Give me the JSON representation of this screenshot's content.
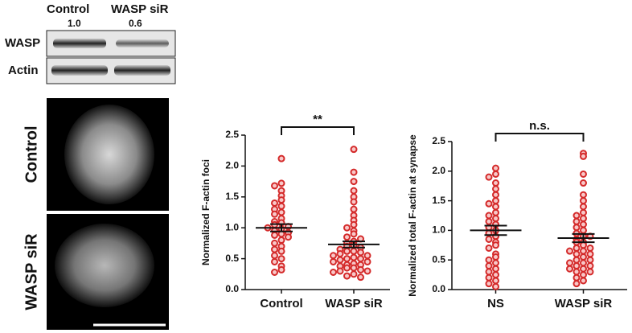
{
  "blot": {
    "lanes": [
      "Control",
      "WASP siR"
    ],
    "ratios": [
      "1.0",
      "0.6"
    ],
    "rows": [
      "WASP",
      "Actin"
    ]
  },
  "images": {
    "labels": [
      "Control",
      "WASP siR"
    ]
  },
  "chart_data": [
    {
      "type": "dot_plot",
      "ylabel": "Normalized F-actin foci",
      "annotation": "**",
      "categories": [
        "Control",
        "WASP siR"
      ],
      "color": "#d42a2a",
      "values": [
        [
          2.12,
          1.72,
          1.68,
          1.6,
          1.52,
          1.45,
          1.4,
          1.35,
          1.3,
          1.25,
          1.22,
          1.15,
          1.1,
          1.08,
          1.05,
          1.02,
          1.0,
          0.98,
          0.95,
          0.92,
          0.9,
          0.88,
          0.85,
          0.8,
          0.75,
          0.7,
          0.65,
          0.62,
          0.55,
          0.5,
          0.45,
          0.38,
          0.32,
          0.28
        ],
        [
          2.27,
          1.9,
          1.75,
          1.6,
          1.5,
          1.42,
          1.3,
          1.2,
          1.12,
          1.05,
          1.0,
          0.95,
          0.9,
          0.85,
          0.82,
          0.78,
          0.75,
          0.72,
          0.7,
          0.68,
          0.65,
          0.62,
          0.62,
          0.6,
          0.58,
          0.55,
          0.55,
          0.52,
          0.5,
          0.5,
          0.48,
          0.45,
          0.45,
          0.42,
          0.4,
          0.4,
          0.38,
          0.35,
          0.35,
          0.32,
          0.3,
          0.3,
          0.28,
          0.25,
          0.22,
          0.2
        ]
      ],
      "means": [
        1.0,
        0.73
      ],
      "sem": [
        0.06,
        0.05
      ],
      "ylim": [
        0,
        2.5
      ],
      "yticks": [
        {
          "value": 0,
          "label": "0.0"
        },
        0.5,
        {
          "value": 1,
          "label": "1.0"
        },
        1.5,
        {
          "value": 2,
          "label": "2.0"
        },
        2.5
      ]
    },
    {
      "type": "dot_plot",
      "ylabel": "Normalized total F-actin at synapse",
      "annotation": "n.s.",
      "categories": [
        "NS",
        "WASP siR"
      ],
      "color": "#d42a2a",
      "values": [
        [
          2.05,
          1.95,
          1.9,
          1.8,
          1.7,
          1.6,
          1.5,
          1.45,
          1.4,
          1.3,
          1.25,
          1.2,
          1.1,
          1.05,
          1.0,
          0.95,
          0.9,
          0.85,
          0.8,
          0.75,
          0.7,
          0.6,
          0.55,
          0.45,
          0.4,
          0.35,
          0.3,
          0.25,
          0.2,
          0.15,
          0.1,
          0.05,
          1.15,
          0.5
        ],
        [
          2.3,
          2.25,
          1.95,
          1.8,
          1.6,
          1.5,
          1.4,
          1.3,
          1.2,
          1.1,
          1.05,
          1.0,
          0.95,
          0.9,
          0.85,
          0.8,
          0.8,
          0.75,
          0.7,
          0.7,
          0.65,
          0.6,
          0.6,
          0.55,
          0.5,
          0.5,
          0.45,
          0.4,
          0.4,
          0.35,
          0.3,
          0.3,
          0.25,
          0.2,
          0.15,
          0.1,
          1.25,
          0.9,
          0.65,
          0.45,
          0.35,
          1.15
        ]
      ],
      "means": [
        1.0,
        0.87
      ],
      "sem": [
        0.08,
        0.07
      ],
      "ylim": [
        0,
        2.5
      ],
      "yticks": [
        {
          "value": 0,
          "label": "0.0"
        },
        0.5,
        {
          "value": 1,
          "label": "1.0"
        },
        1.5,
        {
          "value": 2,
          "label": "2.0"
        },
        2.5
      ]
    }
  ]
}
